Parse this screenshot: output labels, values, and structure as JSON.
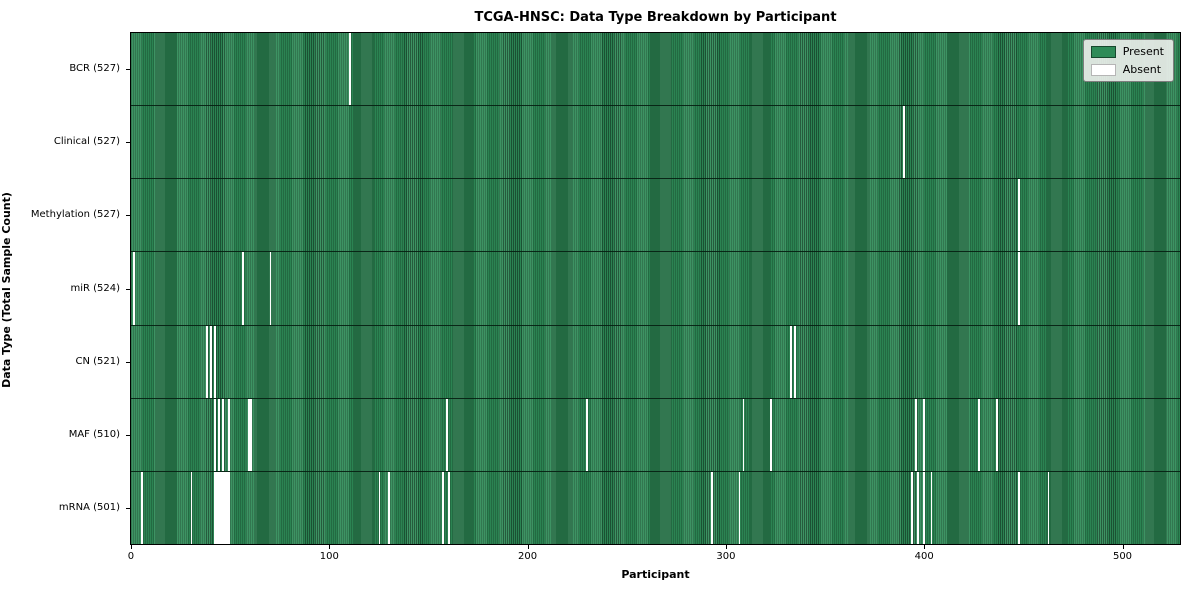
{
  "chart_data": {
    "type": "heatmap",
    "title": "TCGA-HNSC: Data Type Breakdown by Participant",
    "xlabel": "Participant",
    "ylabel": "Data Type (Total Sample Count)",
    "x_ticks": [
      0,
      100,
      200,
      300,
      400,
      500
    ],
    "x_max": 530,
    "n_participants": 527,
    "grid": false,
    "legend_position": "upper right",
    "legend": {
      "present_label": "Present",
      "absent_label": "Absent"
    },
    "colors": {
      "present": "#2e8b57",
      "present_edge": "#1b4d32",
      "absent": "#ffffff",
      "legend_bg": "#e9eee9",
      "frame": "#000000"
    },
    "rows": [
      {
        "label": "BCR (527)",
        "total_sample_count": 527,
        "absent_participants": [
          110
        ]
      },
      {
        "label": "Clinical (527)",
        "total_sample_count": 527,
        "absent_participants": [
          390
        ]
      },
      {
        "label": "Methylation (527)",
        "total_sample_count": 527,
        "absent_participants": [
          448
        ]
      },
      {
        "label": "miR (524)",
        "total_sample_count": 524,
        "absent_participants": [
          1,
          56,
          70,
          448
        ]
      },
      {
        "label": "CN (521)",
        "total_sample_count": 521,
        "absent_participants": [
          38,
          40,
          42,
          333,
          335
        ]
      },
      {
        "label": "MAF (510)",
        "total_sample_count": 510,
        "absent_participants": [
          42,
          44,
          46,
          49,
          59,
          60,
          159,
          230,
          309,
          323,
          396,
          400,
          428,
          437
        ]
      },
      {
        "label": "mRNA (501)",
        "total_sample_count": 501,
        "absent_participants": [
          5,
          30,
          42,
          43,
          44,
          45,
          46,
          47,
          48,
          49,
          125,
          130,
          157,
          160,
          293,
          307,
          394,
          397,
          400,
          404,
          448,
          463
        ]
      }
    ]
  }
}
